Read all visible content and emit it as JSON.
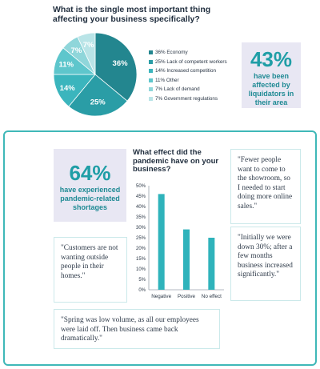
{
  "top": {
    "question": "What is the single most important thing affecting your business specifically?",
    "stat_box": {
      "value": "43%",
      "caption": "have been affected by liquidators in their area"
    }
  },
  "bottom": {
    "stat_box": {
      "value": "64%",
      "caption": "have experienced pandemic-related shortages"
    },
    "chart_title": "What effect did the pandemic have on your business?",
    "quotes": [
      "\"Fewer people want to come to the showroom, so I needed to start doing more online sales.\"",
      "\"Customers are not wanting outside people in their homes.\"",
      "\"Initially we were down 30%; after a few months business increased significantly.\"",
      "\"Spring was low volume, as all our employees were laid off. Then business came back dramatically.\""
    ]
  },
  "chart_data": [
    {
      "type": "pie",
      "title": "What is the single most important thing affecting your business specifically?",
      "slices": [
        {
          "label": "Economy",
          "value": 36,
          "display": "36%",
          "legend": "36% Economy",
          "color": "#23868f"
        },
        {
          "label": "Lack of competent workers",
          "value": 25,
          "display": "25%",
          "legend": "25% Lack of competent workers",
          "color": "#2a9da6"
        },
        {
          "label": "Increased competition",
          "value": 14,
          "display": "14%",
          "legend": "14% Increased competition",
          "color": "#3bb5bd"
        },
        {
          "label": "Other",
          "value": 11,
          "display": "11%",
          "legend": "11% Other",
          "color": "#5ec6cc"
        },
        {
          "label": "Lack of demand",
          "value": 7,
          "display": "7%",
          "legend": "7% Lack of demand",
          "color": "#8fd6da"
        },
        {
          "label": "Government regulations",
          "value": 7,
          "display": "7%",
          "legend": "7% Government regulations",
          "color": "#b9e4e7"
        }
      ],
      "legend_position": "right"
    },
    {
      "type": "bar",
      "title": "What effect did the pandemic have on your business?",
      "categories": [
        "Negative",
        "Positive",
        "No effect"
      ],
      "values": [
        46,
        29,
        25
      ],
      "ylim": [
        0,
        50
      ],
      "yticks": [
        "0%",
        "5%",
        "10%",
        "15%",
        "20%",
        "25%",
        "30%",
        "35%",
        "40%",
        "45%",
        "50%"
      ],
      "color": "#2fb3bb",
      "grid": false
    }
  ]
}
